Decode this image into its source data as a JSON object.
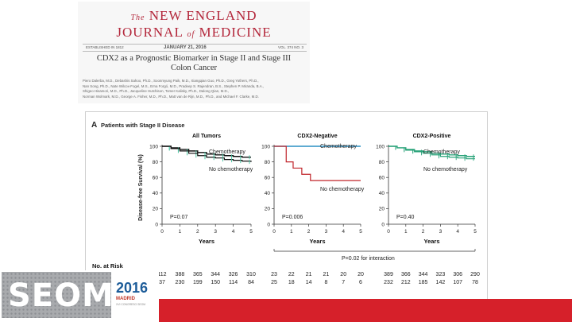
{
  "journal": {
    "name_line1_prefix": "The",
    "name_line1": "NEW ENGLAND",
    "name_line2_a": "JOURNAL",
    "name_line2_of": "of",
    "name_line2_b": "MEDICINE",
    "established": "ESTABLISHED IN 1812",
    "date": "JANUARY 21, 2016",
    "volume": "VOL. 374 NO. 3"
  },
  "article": {
    "title_line1": "CDX2 as a Prognostic Biomarker in Stage II and Stage III",
    "title_line2": "Colon Cancer",
    "authors": [
      "Piero Dalerba, M.D., Debashis Sahoo, Ph.D., Soonmyung Paik, M.D., Xiangqian Guo, Ph.D., Greg Yothers, Ph.D.,",
      "Nan Song, Ph.D., Nate Wilcox-Fogel, M.S., Erna Forgó, M.D., Pradeep S. Rajendran, B.S., Stephen P. Miranda, B.A.,",
      "Shigeo Hisamori, M.D., Ph.D., Jacqueline Hutchison, Tomer Kalisky, Ph.D., Dalong Qian, M.D.,",
      "Norman Wolmark, M.D., George A. Fisher, M.D., Ph.D., Matt van de Rijn, M.D., Ph.D., and Michael F. Clarke, M.D."
    ]
  },
  "figure": {
    "panel_letter": "A",
    "panel_title": "Patients with Stage II Disease",
    "y_label": "Disease-free Survival (%)",
    "x_label": "Years",
    "interaction": "P=0.02 for interaction",
    "at_risk_title": "No. at Risk",
    "at_risk_row_labels": [
      "Chemotherapy",
      "No chemotherapy"
    ]
  },
  "chart_data": [
    {
      "type": "line",
      "title": "All Tumors",
      "xlabel": "Years",
      "ylabel": "Disease-free Survival (%)",
      "xlim": [
        0,
        5
      ],
      "ylim": [
        0,
        100
      ],
      "x_ticks": [
        0,
        1,
        2,
        3,
        4,
        5
      ],
      "y_ticks": [
        0,
        20,
        40,
        60,
        80,
        100
      ],
      "p_value": "P=0.07",
      "series": [
        {
          "name": "Chemotherapy",
          "x": [
            0,
            0.5,
            1,
            1.5,
            2,
            2.5,
            3,
            3.5,
            4,
            4.5,
            5
          ],
          "y": [
            100,
            98,
            96,
            94,
            92,
            90,
            89,
            88,
            87,
            86,
            86
          ]
        },
        {
          "name": "No chemotherapy",
          "x": [
            0,
            0.5,
            1,
            1.5,
            2,
            2.5,
            3,
            3.5,
            4,
            4.5,
            5
          ],
          "y": [
            100,
            97,
            94,
            91,
            88,
            86,
            85,
            83,
            82,
            81,
            80
          ]
        }
      ],
      "at_risk": {
        "Chemotherapy": [
          112,
          388,
          365,
          344,
          326,
          310
        ],
        "No chemotherapy": [
          37,
          230,
          199,
          150,
          114,
          84
        ]
      }
    },
    {
      "type": "line",
      "title": "CDX2-Negative",
      "xlabel": "Years",
      "xlim": [
        0,
        5
      ],
      "ylim": [
        0,
        100
      ],
      "x_ticks": [
        0,
        1,
        2,
        3,
        4,
        5
      ],
      "y_ticks": [
        0,
        20,
        40,
        60,
        80,
        100
      ],
      "p_value": "P=0.006",
      "series": [
        {
          "name": "Chemotherapy",
          "x": [
            0,
            0.3,
            5
          ],
          "y": [
            100,
            100,
            100
          ]
        },
        {
          "name": "No chemotherapy",
          "x": [
            0,
            0.7,
            0.7,
            1.1,
            1.1,
            1.6,
            1.6,
            2.1,
            2.1,
            5
          ],
          "y": [
            100,
            100,
            80,
            80,
            72,
            72,
            64,
            64,
            56,
            56
          ]
        }
      ],
      "at_risk": {
        "Chemotherapy": [
          23,
          22,
          21,
          21,
          20,
          20
        ],
        "No chemotherapy": [
          25,
          18,
          14,
          8,
          7,
          6
        ]
      }
    },
    {
      "type": "line",
      "title": "CDX2-Positive",
      "xlabel": "Years",
      "xlim": [
        0,
        5
      ],
      "ylim": [
        0,
        100
      ],
      "x_ticks": [
        0,
        1,
        2,
        3,
        4,
        5
      ],
      "y_ticks": [
        0,
        20,
        40,
        60,
        80,
        100
      ],
      "p_value": "P=0.40",
      "series": [
        {
          "name": "Chemotherapy",
          "x": [
            0,
            0.5,
            1,
            1.5,
            2,
            2.5,
            3,
            3.5,
            4,
            4.5,
            5
          ],
          "y": [
            100,
            98,
            96,
            94,
            93,
            91,
            90,
            89,
            88,
            87,
            87
          ]
        },
        {
          "name": "No chemotherapy",
          "x": [
            0,
            0.5,
            1,
            1.5,
            2,
            2.5,
            3,
            3.5,
            4,
            4.5,
            5
          ],
          "y": [
            100,
            98,
            95,
            93,
            91,
            89,
            87,
            86,
            85,
            84,
            84
          ]
        }
      ],
      "at_risk": {
        "Chemotherapy": [
          389,
          366,
          344,
          323,
          306,
          290
        ],
        "No chemotherapy": [
          232,
          212,
          185,
          142,
          107,
          78
        ]
      }
    }
  ],
  "colors": {
    "masthead": "#b3263a",
    "all_tumors_curve": "#111111",
    "all_tumors_marker": "#3bbf9a",
    "negative_chemo": "#2a8fc4",
    "negative_no_chemo": "#c0242a",
    "positive_curve": "#2aa37a",
    "footer_bar": "#d6202a",
    "logo_gray": "#a8aaad",
    "year_blue": "#1d5c99"
  },
  "footer": {
    "logo_text": "SEOM",
    "year": "2016",
    "city": "MADRID",
    "subtitle": "XVI CONGRESO SEOM"
  }
}
